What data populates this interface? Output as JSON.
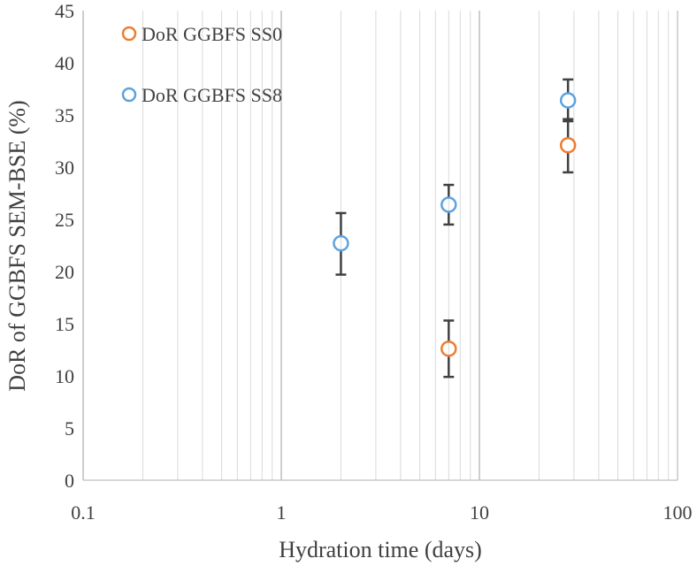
{
  "chart_data": {
    "type": "scatter",
    "title": "",
    "xlabel": "Hydration time (days)",
    "ylabel": "DoR of GGBFS SEM-BSE (%)",
    "xscale": "log",
    "xlim": [
      0.1,
      100
    ],
    "ylim": [
      0,
      45
    ],
    "x_ticks": [
      0.1,
      1,
      10,
      100
    ],
    "x_tick_labels": [
      "0.1",
      "1",
      "10",
      "100"
    ],
    "y_ticks": [
      0,
      5,
      10,
      15,
      20,
      25,
      30,
      35,
      40,
      45
    ],
    "y_tick_labels": [
      "0",
      "5",
      "10",
      "15",
      "20",
      "25",
      "30",
      "35",
      "40",
      "45"
    ],
    "grid": "vertical major and minor",
    "legend_position": "top-left",
    "series": [
      {
        "name": "DoR GGBFS SS0",
        "color": "#ED7D31",
        "marker": "open-circle",
        "points": [
          {
            "x": 7,
            "y": 12.6,
            "err_low": 9.9,
            "err_high": 15.3
          },
          {
            "x": 28,
            "y": 32.1,
            "err_low": 29.5,
            "err_high": 34.6
          }
        ]
      },
      {
        "name": "DoR GGBFS SS8",
        "color": "#5BA3E0",
        "marker": "open-circle",
        "points": [
          {
            "x": 2,
            "y": 22.7,
            "err_low": 19.7,
            "err_high": 25.6
          },
          {
            "x": 7,
            "y": 26.4,
            "err_low": 24.5,
            "err_high": 28.3
          },
          {
            "x": 28,
            "y": 36.4,
            "err_low": 34.4,
            "err_high": 38.4
          }
        ]
      }
    ],
    "error_bar_color": "#404040",
    "grid_color": "#D9D9D9",
    "axis_color": "#BFBFBF"
  }
}
